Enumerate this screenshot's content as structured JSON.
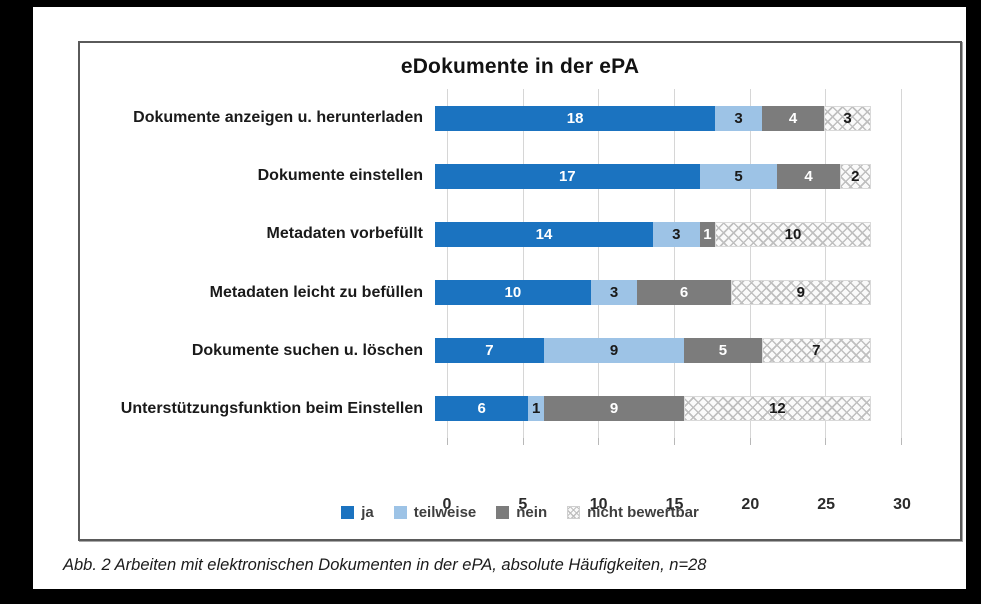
{
  "title": "eDokumente in der ePA",
  "caption": "Abb. 2 Arbeiten mit elektronischen Dokumenten in der ePA, absolute Häufigkeiten, n=28",
  "colors": {
    "ja": "#1b73c0",
    "teilweise": "#9dc3e6",
    "nein": "#7c7c7c",
    "nicht_bewertbar_pattern_line": "#bfbfbf",
    "nicht_bewertbar_pattern_bg": "#fafafa",
    "gridline": "#d6d6d6",
    "frame_border": "#5a5a5a"
  },
  "chart_data": {
    "type": "bar",
    "orientation": "horizontal",
    "stacked": true,
    "title": "eDokumente in der ePA",
    "categories": [
      "Dokumente anzeigen u. herunterladen",
      "Dokumente einstellen",
      "Metadaten vorbefüllt",
      "Metadaten leicht zu befüllen",
      "Dokumente suchen u. löschen",
      "Unterstützungsfunktion beim Einstellen"
    ],
    "series": [
      {
        "name": "ja",
        "color": "#1b73c0",
        "values": [
          18,
          17,
          14,
          10,
          7,
          6
        ]
      },
      {
        "name": "teilweise",
        "color": "#9dc3e6",
        "values": [
          3,
          5,
          3,
          3,
          9,
          1
        ]
      },
      {
        "name": "nein",
        "color": "#7c7c7c",
        "values": [
          4,
          4,
          1,
          6,
          5,
          9
        ]
      },
      {
        "name": "nicht bewertbar",
        "color": "pattern-light-gray-lattice",
        "values": [
          3,
          2,
          10,
          9,
          7,
          12
        ]
      }
    ],
    "x_ticks": [
      0,
      5,
      10,
      15,
      20,
      25,
      30
    ],
    "xlim": [
      0,
      30
    ],
    "xlabel": "",
    "ylabel": "",
    "grid": "vertical",
    "legend_position": "bottom",
    "n": 28
  }
}
